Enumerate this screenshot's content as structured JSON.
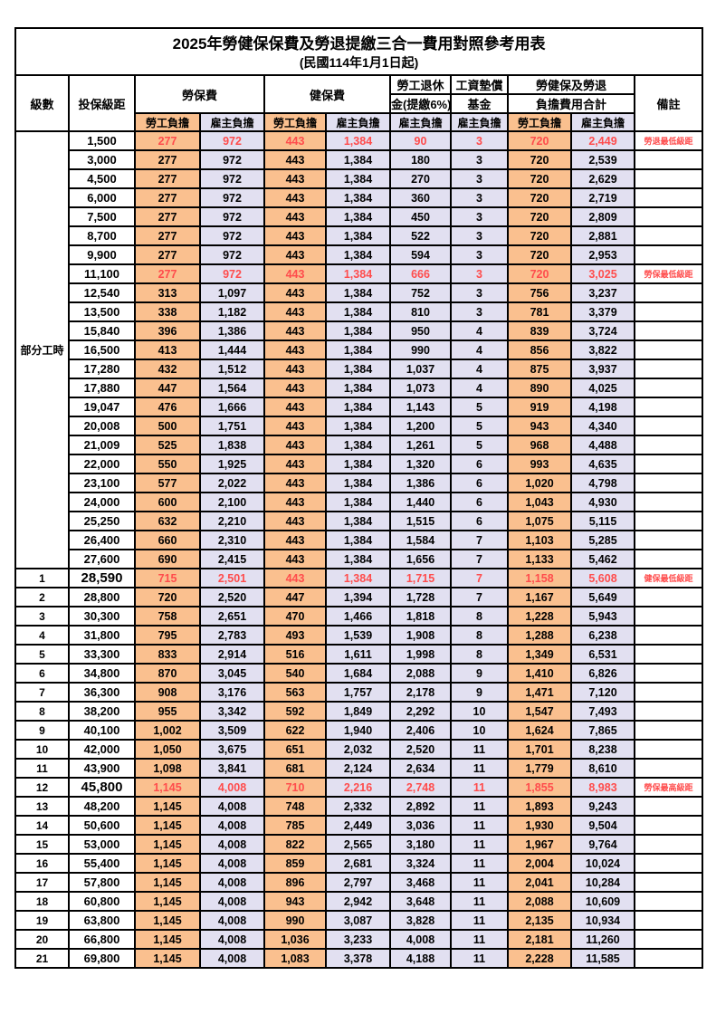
{
  "title": "2025年勞健保保費及勞退提繳三合一費用對照參考用表",
  "subtitle": "(民國114年1月1日起)",
  "colors": {
    "employee_column_bg": "#FAC08F",
    "employer_column_bg": "#E2E0F1",
    "highlight_text": "#FF4C4C",
    "normal_text": "#000000",
    "border": "#000000",
    "background": "#FFFFFF"
  },
  "header": {
    "level": "級數",
    "bracket": "投保級距",
    "labor_insurance": "勞保費",
    "health_insurance": "健保費",
    "pension_line1": "勞工退休",
    "pension_line2": "金(提繳6%)",
    "wage_fund_line1": "工資墊償",
    "wage_fund_line2": "基金",
    "total_line1": "勞健保及勞退",
    "total_line2": "負擔費用合計",
    "note": "備註",
    "employee": "勞工負擔",
    "employer": "雇主負擔"
  },
  "part_time_label": "部分工時",
  "part_time_row_count": 23,
  "rows": [
    {
      "lv": "",
      "br": "1,500",
      "v": [
        "277",
        "972",
        "443",
        "1,384",
        "90",
        "3",
        "720",
        "2,449"
      ],
      "note": "勞退最低級距",
      "hl": true,
      "big": false
    },
    {
      "lv": "",
      "br": "3,000",
      "v": [
        "277",
        "972",
        "443",
        "1,384",
        "180",
        "3",
        "720",
        "2,539"
      ],
      "note": "",
      "hl": false,
      "big": false
    },
    {
      "lv": "",
      "br": "4,500",
      "v": [
        "277",
        "972",
        "443",
        "1,384",
        "270",
        "3",
        "720",
        "2,629"
      ],
      "note": "",
      "hl": false,
      "big": false
    },
    {
      "lv": "",
      "br": "6,000",
      "v": [
        "277",
        "972",
        "443",
        "1,384",
        "360",
        "3",
        "720",
        "2,719"
      ],
      "note": "",
      "hl": false,
      "big": false
    },
    {
      "lv": "",
      "br": "7,500",
      "v": [
        "277",
        "972",
        "443",
        "1,384",
        "450",
        "3",
        "720",
        "2,809"
      ],
      "note": "",
      "hl": false,
      "big": false
    },
    {
      "lv": "",
      "br": "8,700",
      "v": [
        "277",
        "972",
        "443",
        "1,384",
        "522",
        "3",
        "720",
        "2,881"
      ],
      "note": "",
      "hl": false,
      "big": false
    },
    {
      "lv": "",
      "br": "9,900",
      "v": [
        "277",
        "972",
        "443",
        "1,384",
        "594",
        "3",
        "720",
        "2,953"
      ],
      "note": "",
      "hl": false,
      "big": false
    },
    {
      "lv": "",
      "br": "11,100",
      "v": [
        "277",
        "972",
        "443",
        "1,384",
        "666",
        "3",
        "720",
        "3,025"
      ],
      "note": "勞保最低級距",
      "hl": true,
      "big": false
    },
    {
      "lv": "",
      "br": "12,540",
      "v": [
        "313",
        "1,097",
        "443",
        "1,384",
        "752",
        "3",
        "756",
        "3,237"
      ],
      "note": "",
      "hl": false,
      "big": false
    },
    {
      "lv": "",
      "br": "13,500",
      "v": [
        "338",
        "1,182",
        "443",
        "1,384",
        "810",
        "3",
        "781",
        "3,379"
      ],
      "note": "",
      "hl": false,
      "big": false
    },
    {
      "lv": "",
      "br": "15,840",
      "v": [
        "396",
        "1,386",
        "443",
        "1,384",
        "950",
        "4",
        "839",
        "3,724"
      ],
      "note": "",
      "hl": false,
      "big": false
    },
    {
      "lv": "",
      "br": "16,500",
      "v": [
        "413",
        "1,444",
        "443",
        "1,384",
        "990",
        "4",
        "856",
        "3,822"
      ],
      "note": "",
      "hl": false,
      "big": false
    },
    {
      "lv": "",
      "br": "17,280",
      "v": [
        "432",
        "1,512",
        "443",
        "1,384",
        "1,037",
        "4",
        "875",
        "3,937"
      ],
      "note": "",
      "hl": false,
      "big": false
    },
    {
      "lv": "",
      "br": "17,880",
      "v": [
        "447",
        "1,564",
        "443",
        "1,384",
        "1,073",
        "4",
        "890",
        "4,025"
      ],
      "note": "",
      "hl": false,
      "big": false
    },
    {
      "lv": "",
      "br": "19,047",
      "v": [
        "476",
        "1,666",
        "443",
        "1,384",
        "1,143",
        "5",
        "919",
        "4,198"
      ],
      "note": "",
      "hl": false,
      "big": false
    },
    {
      "lv": "",
      "br": "20,008",
      "v": [
        "500",
        "1,751",
        "443",
        "1,384",
        "1,200",
        "5",
        "943",
        "4,340"
      ],
      "note": "",
      "hl": false,
      "big": false
    },
    {
      "lv": "",
      "br": "21,009",
      "v": [
        "525",
        "1,838",
        "443",
        "1,384",
        "1,261",
        "5",
        "968",
        "4,488"
      ],
      "note": "",
      "hl": false,
      "big": false
    },
    {
      "lv": "",
      "br": "22,000",
      "v": [
        "550",
        "1,925",
        "443",
        "1,384",
        "1,320",
        "6",
        "993",
        "4,635"
      ],
      "note": "",
      "hl": false,
      "big": false
    },
    {
      "lv": "",
      "br": "23,100",
      "v": [
        "577",
        "2,022",
        "443",
        "1,384",
        "1,386",
        "6",
        "1,020",
        "4,798"
      ],
      "note": "",
      "hl": false,
      "big": false
    },
    {
      "lv": "",
      "br": "24,000",
      "v": [
        "600",
        "2,100",
        "443",
        "1,384",
        "1,440",
        "6",
        "1,043",
        "4,930"
      ],
      "note": "",
      "hl": false,
      "big": false
    },
    {
      "lv": "",
      "br": "25,250",
      "v": [
        "632",
        "2,210",
        "443",
        "1,384",
        "1,515",
        "6",
        "1,075",
        "5,115"
      ],
      "note": "",
      "hl": false,
      "big": false
    },
    {
      "lv": "",
      "br": "26,400",
      "v": [
        "660",
        "2,310",
        "443",
        "1,384",
        "1,584",
        "7",
        "1,103",
        "5,285"
      ],
      "note": "",
      "hl": false,
      "big": false
    },
    {
      "lv": "",
      "br": "27,600",
      "v": [
        "690",
        "2,415",
        "443",
        "1,384",
        "1,656",
        "7",
        "1,133",
        "5,462"
      ],
      "note": "",
      "hl": false,
      "big": false
    },
    {
      "lv": "1",
      "br": "28,590",
      "v": [
        "715",
        "2,501",
        "443",
        "1,384",
        "1,715",
        "7",
        "1,158",
        "5,608"
      ],
      "note": "健保最低級距",
      "hl": true,
      "big": true
    },
    {
      "lv": "2",
      "br": "28,800",
      "v": [
        "720",
        "2,520",
        "447",
        "1,394",
        "1,728",
        "7",
        "1,167",
        "5,649"
      ],
      "note": "",
      "hl": false,
      "big": false
    },
    {
      "lv": "3",
      "br": "30,300",
      "v": [
        "758",
        "2,651",
        "470",
        "1,466",
        "1,818",
        "8",
        "1,228",
        "5,943"
      ],
      "note": "",
      "hl": false,
      "big": false
    },
    {
      "lv": "4",
      "br": "31,800",
      "v": [
        "795",
        "2,783",
        "493",
        "1,539",
        "1,908",
        "8",
        "1,288",
        "6,238"
      ],
      "note": "",
      "hl": false,
      "big": false
    },
    {
      "lv": "5",
      "br": "33,300",
      "v": [
        "833",
        "2,914",
        "516",
        "1,611",
        "1,998",
        "8",
        "1,349",
        "6,531"
      ],
      "note": "",
      "hl": false,
      "big": false
    },
    {
      "lv": "6",
      "br": "34,800",
      "v": [
        "870",
        "3,045",
        "540",
        "1,684",
        "2,088",
        "9",
        "1,410",
        "6,826"
      ],
      "note": "",
      "hl": false,
      "big": false
    },
    {
      "lv": "7",
      "br": "36,300",
      "v": [
        "908",
        "3,176",
        "563",
        "1,757",
        "2,178",
        "9",
        "1,471",
        "7,120"
      ],
      "note": "",
      "hl": false,
      "big": false
    },
    {
      "lv": "8",
      "br": "38,200",
      "v": [
        "955",
        "3,342",
        "592",
        "1,849",
        "2,292",
        "10",
        "1,547",
        "7,493"
      ],
      "note": "",
      "hl": false,
      "big": false
    },
    {
      "lv": "9",
      "br": "40,100",
      "v": [
        "1,002",
        "3,509",
        "622",
        "1,940",
        "2,406",
        "10",
        "1,624",
        "7,865"
      ],
      "note": "",
      "hl": false,
      "big": false
    },
    {
      "lv": "10",
      "br": "42,000",
      "v": [
        "1,050",
        "3,675",
        "651",
        "2,032",
        "2,520",
        "11",
        "1,701",
        "8,238"
      ],
      "note": "",
      "hl": false,
      "big": false
    },
    {
      "lv": "11",
      "br": "43,900",
      "v": [
        "1,098",
        "3,841",
        "681",
        "2,124",
        "2,634",
        "11",
        "1,779",
        "8,610"
      ],
      "note": "",
      "hl": false,
      "big": false
    },
    {
      "lv": "12",
      "br": "45,800",
      "v": [
        "1,145",
        "4,008",
        "710",
        "2,216",
        "2,748",
        "11",
        "1,855",
        "8,983"
      ],
      "note": "勞保最高級距",
      "hl": true,
      "big": true
    },
    {
      "lv": "13",
      "br": "48,200",
      "v": [
        "1,145",
        "4,008",
        "748",
        "2,332",
        "2,892",
        "11",
        "1,893",
        "9,243"
      ],
      "note": "",
      "hl": false,
      "big": false
    },
    {
      "lv": "14",
      "br": "50,600",
      "v": [
        "1,145",
        "4,008",
        "785",
        "2,449",
        "3,036",
        "11",
        "1,930",
        "9,504"
      ],
      "note": "",
      "hl": false,
      "big": false
    },
    {
      "lv": "15",
      "br": "53,000",
      "v": [
        "1,145",
        "4,008",
        "822",
        "2,565",
        "3,180",
        "11",
        "1,967",
        "9,764"
      ],
      "note": "",
      "hl": false,
      "big": false
    },
    {
      "lv": "16",
      "br": "55,400",
      "v": [
        "1,145",
        "4,008",
        "859",
        "2,681",
        "3,324",
        "11",
        "2,004",
        "10,024"
      ],
      "note": "",
      "hl": false,
      "big": false
    },
    {
      "lv": "17",
      "br": "57,800",
      "v": [
        "1,145",
        "4,008",
        "896",
        "2,797",
        "3,468",
        "11",
        "2,041",
        "10,284"
      ],
      "note": "",
      "hl": false,
      "big": false
    },
    {
      "lv": "18",
      "br": "60,800",
      "v": [
        "1,145",
        "4,008",
        "943",
        "2,942",
        "3,648",
        "11",
        "2,088",
        "10,609"
      ],
      "note": "",
      "hl": false,
      "big": false
    },
    {
      "lv": "19",
      "br": "63,800",
      "v": [
        "1,145",
        "4,008",
        "990",
        "3,087",
        "3,828",
        "11",
        "2,135",
        "10,934"
      ],
      "note": "",
      "hl": false,
      "big": false
    },
    {
      "lv": "20",
      "br": "66,800",
      "v": [
        "1,145",
        "4,008",
        "1,036",
        "3,233",
        "4,008",
        "11",
        "2,181",
        "11,260"
      ],
      "note": "",
      "hl": false,
      "big": false
    },
    {
      "lv": "21",
      "br": "69,800",
      "v": [
        "1,145",
        "4,008",
        "1,083",
        "3,378",
        "4,188",
        "11",
        "2,228",
        "11,585"
      ],
      "note": "",
      "hl": false,
      "big": false
    }
  ]
}
